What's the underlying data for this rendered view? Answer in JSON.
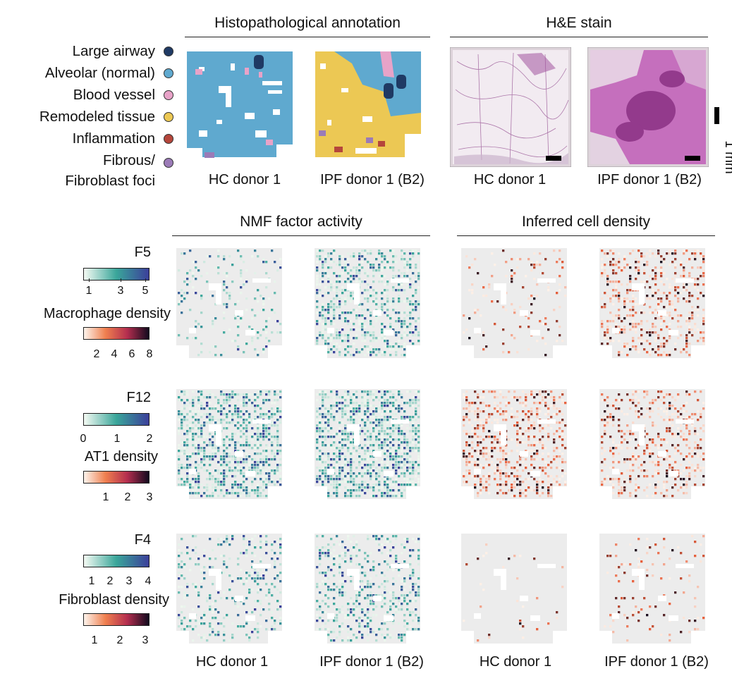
{
  "headers": {
    "histo": "Histopathological annotation",
    "he": "H&E stain",
    "nmf": "NMF factor activity",
    "density": "Inferred cell density"
  },
  "legend": [
    {
      "label": "Large airway",
      "color": "#1f3a64"
    },
    {
      "label": "Alveolar (normal)",
      "color": "#5fa9cf"
    },
    {
      "label": "Blood vessel",
      "color": "#e8a3c8"
    },
    {
      "label": "Remodeled tissue",
      "color": "#ecc854"
    },
    {
      "label": "Inflammation",
      "color": "#b5463b"
    },
    {
      "label": "Fibrous/",
      "color": "#9b7bb7"
    },
    {
      "label": "Fibroblast foci",
      "color": null
    }
  ],
  "captions": {
    "hc": "HC donor 1",
    "ipf": "IPF donor 1 (B2)"
  },
  "scale": "1 mm",
  "colorbars": [
    {
      "title": "F5",
      "ticks": [
        "1",
        "3",
        "5"
      ],
      "kind": "teal"
    },
    {
      "title": "Macrophage density",
      "ticks": [
        "2",
        "4",
        "6",
        "8"
      ],
      "kind": "red"
    },
    {
      "title": "F12",
      "ticks": [
        "0",
        "1",
        "2"
      ],
      "kind": "teal"
    },
    {
      "title": "AT1 density",
      "ticks": [
        "1",
        "2",
        "3"
      ],
      "kind": "red"
    },
    {
      "title": "F4",
      "ticks": [
        "1",
        "2",
        "3",
        "4"
      ],
      "kind": "teal"
    },
    {
      "title": "Fibroblast density",
      "ticks": [
        "1",
        "2",
        "3"
      ],
      "kind": "red"
    }
  ],
  "colors": {
    "teal_low": "#eef7ee",
    "teal_mid": "#3aa69a",
    "teal_high": "#3b3f9a",
    "red_low": "#fdf1e8",
    "red_mid": "#e8603c",
    "red_high": "#120a1e",
    "tissue_bg": "#ececec",
    "he_bg": "#e9d9e4",
    "he_dark": "#8a2f83"
  }
}
